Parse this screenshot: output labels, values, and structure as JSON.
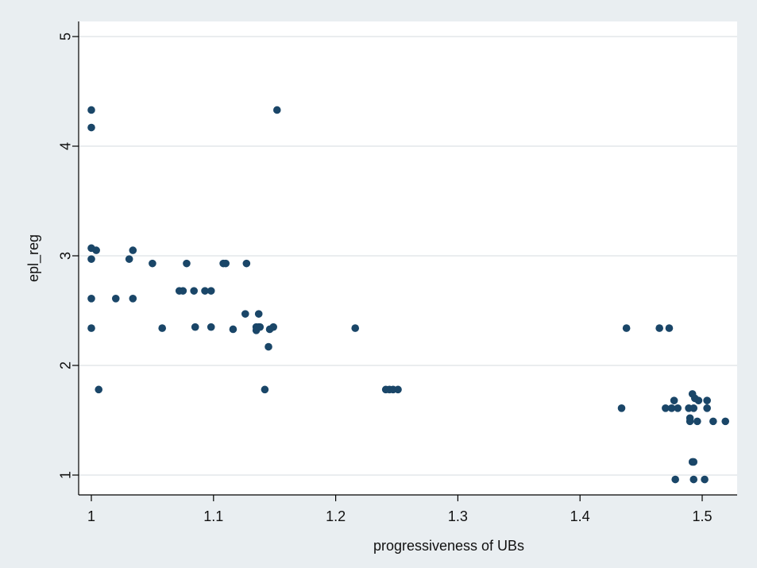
{
  "chart_data": {
    "type": "scatter",
    "title": "",
    "xlabel": "progressiveness of UBs",
    "ylabel": "epl_reg",
    "xlim": [
      1,
      1.5
    ],
    "ylim": [
      1,
      5
    ],
    "x_ticks": [
      1,
      1.1,
      1.2,
      1.3,
      1.4,
      1.5
    ],
    "x_tick_labels": [
      "1",
      "1.1",
      "1.2",
      "1.3",
      "1.4",
      "1.5"
    ],
    "y_ticks": [
      1,
      2,
      3,
      4,
      5
    ],
    "y_tick_labels": [
      "1",
      "2",
      "3",
      "4",
      "5"
    ],
    "grid": "horizontal",
    "colors": {
      "marker": "#1a4668",
      "background": "#e9eef1",
      "plot": "#ffffff",
      "grid": "#e3e7ea"
    },
    "points": [
      {
        "x": 1.0,
        "y": 4.33
      },
      {
        "x": 1.0,
        "y": 4.17
      },
      {
        "x": 1.0,
        "y": 3.07
      },
      {
        "x": 1.004,
        "y": 3.05
      },
      {
        "x": 1.0,
        "y": 2.97
      },
      {
        "x": 1.0,
        "y": 2.61
      },
      {
        "x": 1.0,
        "y": 2.34
      },
      {
        "x": 1.006,
        "y": 1.78
      },
      {
        "x": 1.02,
        "y": 2.61
      },
      {
        "x": 1.031,
        "y": 2.97
      },
      {
        "x": 1.034,
        "y": 3.05
      },
      {
        "x": 1.034,
        "y": 2.61
      },
      {
        "x": 1.05,
        "y": 2.93
      },
      {
        "x": 1.058,
        "y": 2.34
      },
      {
        "x": 1.072,
        "y": 2.68
      },
      {
        "x": 1.075,
        "y": 2.68
      },
      {
        "x": 1.078,
        "y": 2.93
      },
      {
        "x": 1.084,
        "y": 2.68
      },
      {
        "x": 1.085,
        "y": 2.35
      },
      {
        "x": 1.093,
        "y": 2.68
      },
      {
        "x": 1.098,
        "y": 2.68
      },
      {
        "x": 1.098,
        "y": 2.35
      },
      {
        "x": 1.108,
        "y": 2.93
      },
      {
        "x": 1.11,
        "y": 2.93
      },
      {
        "x": 1.116,
        "y": 2.33
      },
      {
        "x": 1.126,
        "y": 2.47
      },
      {
        "x": 1.127,
        "y": 2.93
      },
      {
        "x": 1.135,
        "y": 2.35
      },
      {
        "x": 1.135,
        "y": 2.32
      },
      {
        "x": 1.137,
        "y": 2.47
      },
      {
        "x": 1.137,
        "y": 2.35
      },
      {
        "x": 1.138,
        "y": 2.35
      },
      {
        "x": 1.142,
        "y": 1.78
      },
      {
        "x": 1.145,
        "y": 2.17
      },
      {
        "x": 1.146,
        "y": 2.33
      },
      {
        "x": 1.149,
        "y": 2.35
      },
      {
        "x": 1.152,
        "y": 4.33
      },
      {
        "x": 1.216,
        "y": 2.34
      },
      {
        "x": 1.241,
        "y": 1.78
      },
      {
        "x": 1.244,
        "y": 1.78
      },
      {
        "x": 1.247,
        "y": 1.78
      },
      {
        "x": 1.251,
        "y": 1.78
      },
      {
        "x": 1.434,
        "y": 1.61
      },
      {
        "x": 1.438,
        "y": 2.34
      },
      {
        "x": 1.465,
        "y": 2.34
      },
      {
        "x": 1.473,
        "y": 2.34
      },
      {
        "x": 1.47,
        "y": 1.61
      },
      {
        "x": 1.475,
        "y": 1.61
      },
      {
        "x": 1.477,
        "y": 1.68
      },
      {
        "x": 1.48,
        "y": 1.61
      },
      {
        "x": 1.478,
        "y": 0.96
      },
      {
        "x": 1.489,
        "y": 1.61
      },
      {
        "x": 1.49,
        "y": 1.52
      },
      {
        "x": 1.49,
        "y": 1.49
      },
      {
        "x": 1.492,
        "y": 1.74
      },
      {
        "x": 1.493,
        "y": 1.61
      },
      {
        "x": 1.494,
        "y": 1.7
      },
      {
        "x": 1.497,
        "y": 1.68
      },
      {
        "x": 1.496,
        "y": 1.49
      },
      {
        "x": 1.492,
        "y": 1.12
      },
      {
        "x": 1.493,
        "y": 1.12
      },
      {
        "x": 1.493,
        "y": 0.96
      },
      {
        "x": 1.502,
        "y": 0.96
      },
      {
        "x": 1.504,
        "y": 1.68
      },
      {
        "x": 1.504,
        "y": 1.61
      },
      {
        "x": 1.509,
        "y": 1.49
      },
      {
        "x": 1.519,
        "y": 1.49
      }
    ]
  }
}
